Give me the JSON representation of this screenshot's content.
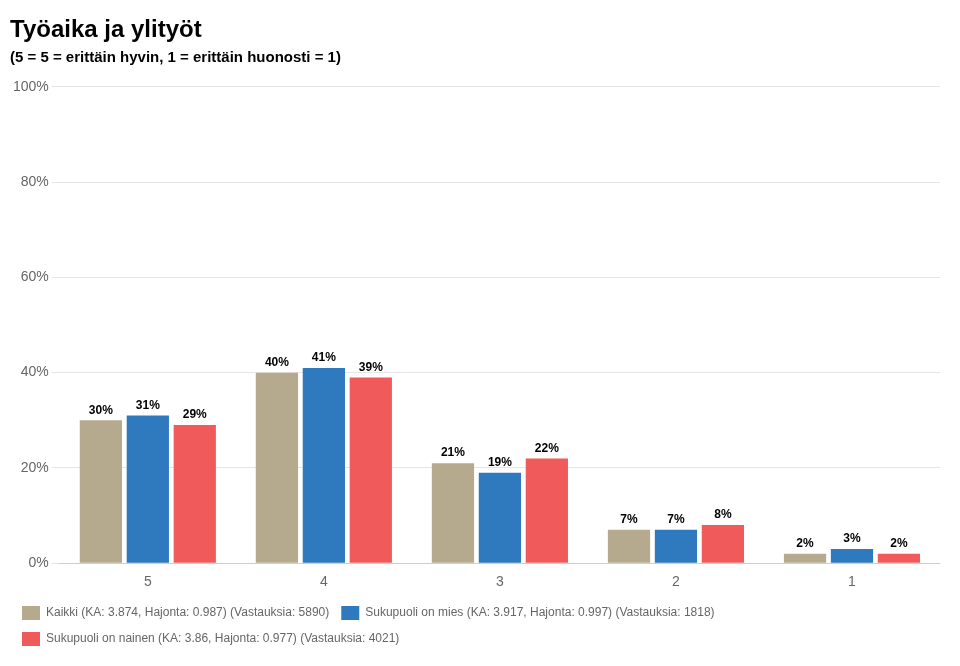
{
  "chart_data": {
    "type": "bar",
    "title": "Työaika ja ylityöt",
    "subtitle": "(5 = 5 = erittäin hyvin, 1 = erittäin huonosti = 1)",
    "categories": [
      "5",
      "4",
      "3",
      "2",
      "1"
    ],
    "series": [
      {
        "name": "Kaikki (KA: 3.874, Hajonta: 0.987) (Vastauksia: 5890)",
        "color": "#b5aa8e",
        "values": [
          30,
          40,
          21,
          7,
          2
        ],
        "value_labels": [
          "30%",
          "40%",
          "21%",
          "7%",
          "2%"
        ]
      },
      {
        "name": "Sukupuoli on mies (KA: 3.917, Hajonta: 0.997) (Vastauksia: 1818)",
        "color": "#2f7abf",
        "values": [
          31,
          41,
          19,
          7,
          3
        ],
        "value_labels": [
          "31%",
          "41%",
          "19%",
          "7%",
          "3%"
        ]
      },
      {
        "name": "Sukupuoli on nainen (KA: 3.86, Hajonta: 0.977) (Vastauksia: 4021)",
        "color": "#f05a5a",
        "values": [
          29,
          39,
          22,
          8,
          2
        ],
        "value_labels": [
          "29%",
          "39%",
          "22%",
          "8%",
          "2%"
        ]
      }
    ],
    "ylim": [
      0,
      100
    ],
    "yticks": [
      {
        "value": 0,
        "label": "0%"
      },
      {
        "value": 20,
        "label": "20%"
      },
      {
        "value": 40,
        "label": "40%"
      },
      {
        "value": 60,
        "label": "60%"
      },
      {
        "value": 80,
        "label": "80%"
      },
      {
        "value": 100,
        "label": "100%"
      }
    ],
    "grid": true,
    "legend": "lower left"
  }
}
